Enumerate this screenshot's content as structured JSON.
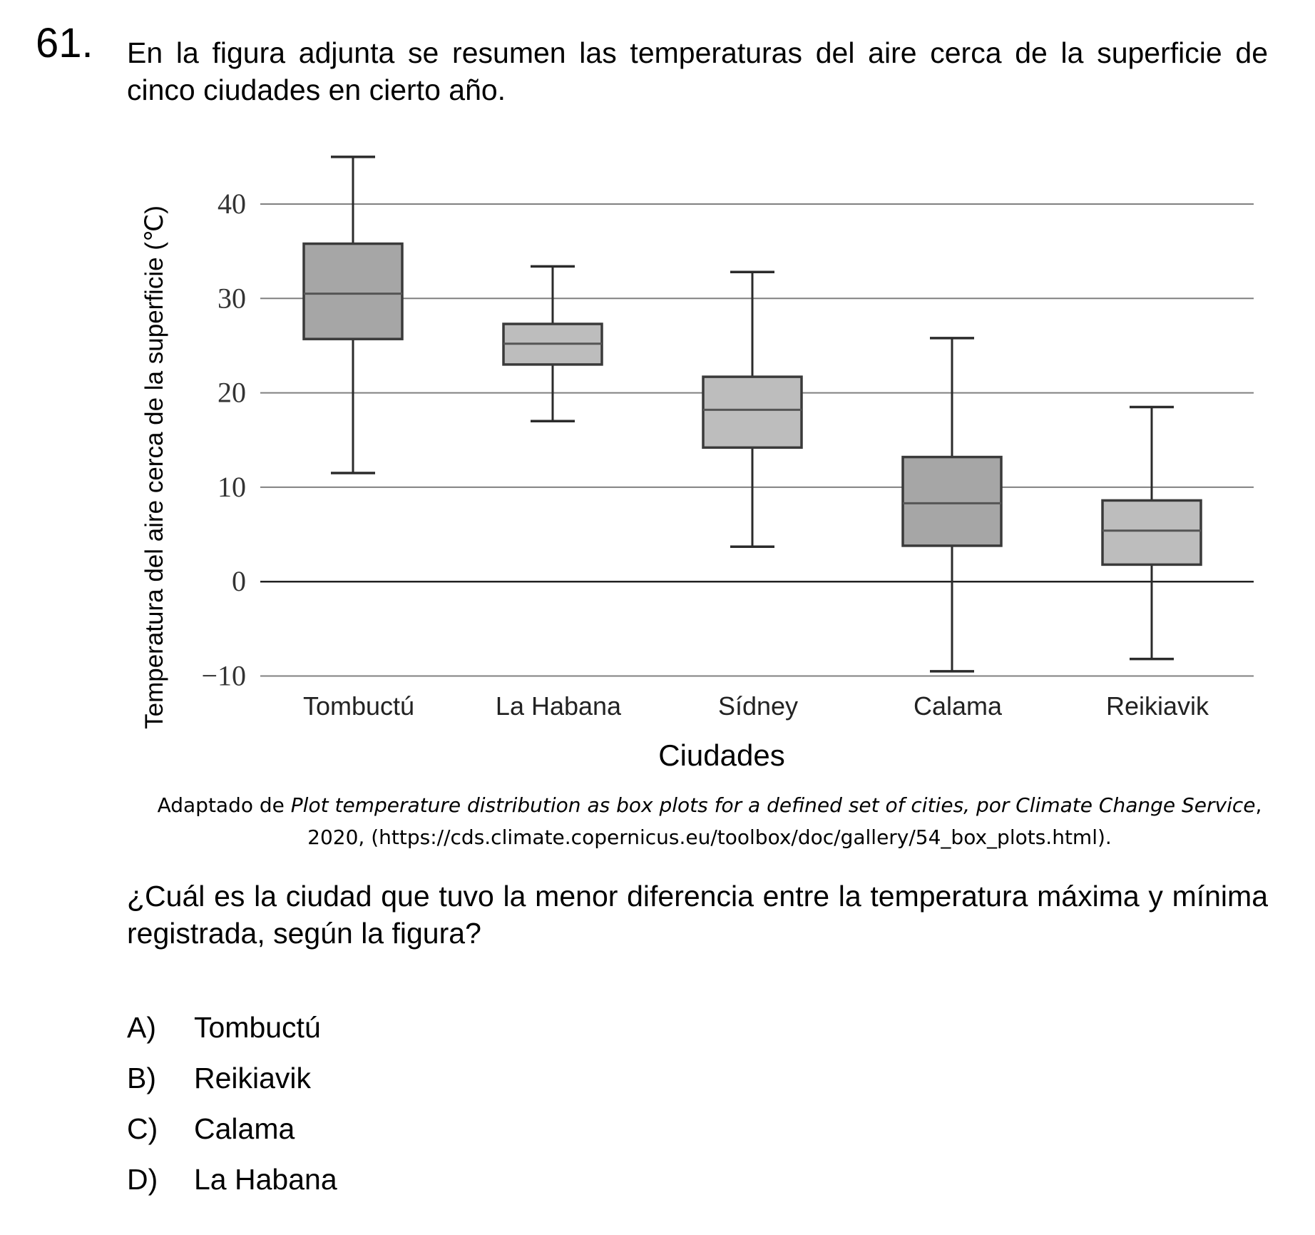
{
  "question": {
    "number": "61.",
    "stem": "En la figura adjunta se resumen las temperaturas del aire cerca de la superficie de cinco ciudades en cierto año.",
    "source_prefix": "Adaptado de ",
    "source_title": "Plot temperature distribution as box plots for a defined set of cities, por Climate Change Service",
    "source_suffix": ", 2020, (https://cds.climate.copernicus.eu/toolbox/doc/gallery/54_box_plots.html).",
    "prompt": "¿Cuál es la ciudad que tuvo la menor diferencia entre la temperatura máxima y mínima registrada, según la figura?",
    "options": [
      {
        "letter": "A)",
        "text": "Tombuctú"
      },
      {
        "letter": "B)",
        "text": "Reikiavik"
      },
      {
        "letter": "C)",
        "text": "Calama"
      },
      {
        "letter": "D)",
        "text": "La Habana"
      }
    ]
  },
  "chart_data": {
    "type": "box",
    "title": "",
    "xlabel": "Ciudades",
    "ylabel": "Temperatura del aire cerca de la superficie (℃)",
    "ylim": [
      -10,
      45
    ],
    "yticks": [
      -10,
      0,
      10,
      20,
      30,
      40
    ],
    "ytick_labels": [
      "−10",
      "0",
      "10",
      "20",
      "30",
      "40"
    ],
    "grid": true,
    "categories": [
      "Tombuctú",
      "La Habana",
      "Sídney",
      "Calama",
      "Reikiavik"
    ],
    "series": [
      {
        "min": 11.5,
        "q1": 25.7,
        "median": 30.5,
        "q3": 35.8,
        "max": 45.0,
        "color": "#a6a6a6"
      },
      {
        "min": 17.0,
        "q1": 23.0,
        "median": 25.2,
        "q3": 27.3,
        "max": 33.4,
        "color": "#bdbdbd"
      },
      {
        "min": 3.7,
        "q1": 14.2,
        "median": 18.2,
        "q3": 21.7,
        "max": 32.8,
        "color": "#bdbdbd"
      },
      {
        "min": -9.5,
        "q1": 3.8,
        "median": 8.3,
        "q3": 13.2,
        "max": 25.8,
        "color": "#a6a6a6"
      },
      {
        "min": -8.2,
        "q1": 1.8,
        "median": 5.4,
        "q3": 8.6,
        "max": 18.5,
        "color": "#bdbdbd"
      }
    ]
  }
}
